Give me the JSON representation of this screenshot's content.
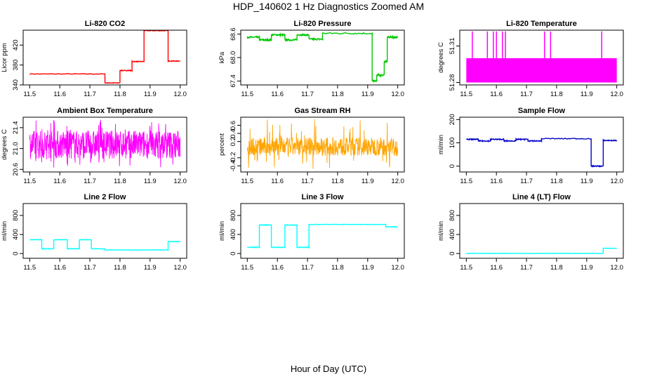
{
  "title": "HDP_140602  1 Hz Diagnostics Zoomed AM",
  "xlabel": "Hour of Day (UTC)",
  "chart_data": [
    {
      "type": "line",
      "title": "Li-820 CO2",
      "ylabel": "Licor ppm",
      "color": "#ff0000",
      "xlim": [
        11.5,
        12.0
      ],
      "ylim": [
        340,
        450
      ],
      "xticks": [
        "11.5",
        "11.6",
        "11.7",
        "11.8",
        "11.9",
        "12.0"
      ],
      "yticks": [
        "340",
        "380",
        "420"
      ],
      "ytick_values": [
        340,
        380,
        420
      ],
      "segments": [
        [
          11.5,
          11.75,
          362
        ],
        [
          11.75,
          11.8,
          344
        ],
        [
          11.8,
          11.84,
          369
        ],
        [
          11.84,
          11.88,
          387
        ],
        [
          11.88,
          11.96,
          449
        ],
        [
          11.96,
          12.0,
          388
        ]
      ],
      "noise": 0.6
    },
    {
      "type": "line",
      "title": "Li-820 Pressure",
      "ylabel": "kPa",
      "color": "#00c800",
      "xlim": [
        11.5,
        12.0
      ],
      "ylim": [
        67.3,
        68.7
      ],
      "xticks": [
        "11.5",
        "11.6",
        "11.7",
        "11.8",
        "11.9",
        "12.0"
      ],
      "yticks": [
        "67.4",
        "68.0",
        "68.6"
      ],
      "ytick_values": [
        67.4,
        68.0,
        68.6
      ],
      "segments": [
        [
          11.5,
          11.54,
          68.52
        ],
        [
          11.54,
          11.58,
          68.45
        ],
        [
          11.58,
          11.625,
          68.58
        ],
        [
          11.625,
          11.665,
          68.45
        ],
        [
          11.665,
          11.705,
          68.58
        ],
        [
          11.705,
          11.75,
          68.47
        ],
        [
          11.75,
          11.915,
          68.62
        ],
        [
          11.915,
          11.93,
          67.4
        ],
        [
          11.93,
          11.955,
          67.55
        ],
        [
          11.955,
          11.965,
          67.9
        ],
        [
          11.965,
          12.0,
          68.52
        ]
      ],
      "noise": 0.02
    },
    {
      "type": "line",
      "title": "Li-820 Temperature",
      "ylabel": "degrees C",
      "color": "#ff00ff",
      "xlim": [
        11.5,
        12.0
      ],
      "ylim": [
        51.278,
        51.323
      ],
      "xticks": [
        "11.5",
        "11.6",
        "11.7",
        "11.8",
        "11.9",
        "12.0"
      ],
      "yticks": [
        "51.28",
        "51.31"
      ],
      "ytick_values": [
        51.28,
        51.31
      ],
      "band": [
        51.28,
        51.3
      ],
      "spikes": [
        11.52,
        11.57,
        11.59,
        11.6,
        11.62,
        11.63,
        11.76,
        11.78,
        11.95
      ],
      "spike_top": 51.322
    },
    {
      "type": "line",
      "title": "Ambient Box Temperature",
      "ylabel": "degrees C",
      "color": "#ff00ff",
      "xlim": [
        11.5,
        12.0
      ],
      "ylim": [
        20.55,
        21.6
      ],
      "xticks": [
        "11.5",
        "11.6",
        "11.7",
        "11.8",
        "11.9",
        "12.0"
      ],
      "yticks": [
        "20.6",
        "21.0",
        "21.4"
      ],
      "ytick_values": [
        20.6,
        21.0,
        21.4
      ],
      "noise_band": [
        20.8,
        21.35
      ],
      "noise_extreme": [
        20.63,
        21.55
      ]
    },
    {
      "type": "line",
      "title": "Gas Stream RH",
      "ylabel": "percent",
      "color": "#ffa500",
      "xlim": [
        11.5,
        12.0
      ],
      "ylim": [
        -0.55,
        0.8
      ],
      "xticks": [
        "11.5",
        "11.6",
        "11.7",
        "11.8",
        "11.9",
        "12.0"
      ],
      "yticks": [
        "-0.4",
        "-0.2",
        "0.2",
        "0.4",
        "0.6"
      ],
      "ytick_values": [
        -0.4,
        -0.2,
        0.2,
        0.4,
        0.6
      ],
      "noise_band": [
        -0.15,
        0.3
      ],
      "noise_extreme": [
        -0.5,
        0.75
      ]
    },
    {
      "type": "line",
      "title": "Sample Flow",
      "ylabel": "ml/min",
      "color": "#0000c8",
      "xlim": [
        11.5,
        12.0
      ],
      "ylim": [
        -25,
        210
      ],
      "xticks": [
        "11.5",
        "11.6",
        "11.7",
        "11.8",
        "11.9",
        "12.0"
      ],
      "yticks": [
        "0",
        "100",
        "200"
      ],
      "ytick_values": [
        0,
        100,
        200
      ],
      "segments": [
        [
          11.5,
          11.54,
          115
        ],
        [
          11.54,
          11.58,
          108
        ],
        [
          11.58,
          11.625,
          115
        ],
        [
          11.625,
          11.665,
          108
        ],
        [
          11.665,
          11.705,
          115
        ],
        [
          11.705,
          11.75,
          108
        ],
        [
          11.75,
          11.915,
          118
        ],
        [
          11.915,
          11.955,
          0
        ],
        [
          11.955,
          12.0,
          110
        ]
      ],
      "noise": 2
    },
    {
      "type": "line",
      "title": "Line 2 Flow",
      "ylabel": "ml/min",
      "color": "#00ffff",
      "xlim": [
        11.5,
        12.0
      ],
      "ylim": [
        -100,
        1050
      ],
      "xticks": [
        "11.5",
        "11.6",
        "11.7",
        "11.8",
        "11.9",
        "12.0"
      ],
      "yticks": [
        "0",
        "400",
        "800"
      ],
      "ytick_values": [
        0,
        400,
        800
      ],
      "segments": [
        [
          11.5,
          11.54,
          290
        ],
        [
          11.54,
          11.58,
          100
        ],
        [
          11.58,
          11.625,
          290
        ],
        [
          11.625,
          11.665,
          100
        ],
        [
          11.665,
          11.705,
          290
        ],
        [
          11.705,
          11.75,
          100
        ],
        [
          11.75,
          11.96,
          75
        ],
        [
          11.96,
          12.0,
          250
        ]
      ],
      "noise": 4
    },
    {
      "type": "line",
      "title": "Line 3 Flow",
      "ylabel": "ml/min",
      "color": "#00ffff",
      "xlim": [
        11.5,
        12.0
      ],
      "ylim": [
        -100,
        1050
      ],
      "xticks": [
        "11.5",
        "11.6",
        "11.7",
        "11.8",
        "11.9",
        "12.0"
      ],
      "yticks": [
        "0",
        "400",
        "800"
      ],
      "ytick_values": [
        0,
        400,
        800
      ],
      "segments": [
        [
          11.5,
          11.54,
          130
        ],
        [
          11.54,
          11.58,
          600
        ],
        [
          11.58,
          11.625,
          130
        ],
        [
          11.625,
          11.665,
          600
        ],
        [
          11.665,
          11.705,
          130
        ],
        [
          11.705,
          11.96,
          610
        ],
        [
          11.96,
          12.0,
          560
        ]
      ],
      "noise": 5
    },
    {
      "type": "line",
      "title": "Line 4 (LT) Flow",
      "ylabel": "ml/min",
      "color": "#00ffff",
      "xlim": [
        11.5,
        12.0
      ],
      "ylim": [
        -100,
        1050
      ],
      "xticks": [
        "11.5",
        "11.6",
        "11.7",
        "11.8",
        "11.9",
        "12.0"
      ],
      "yticks": [
        "0",
        "400",
        "800"
      ],
      "ytick_values": [
        0,
        400,
        800
      ],
      "segments": [
        [
          11.5,
          11.955,
          2
        ],
        [
          11.955,
          12.0,
          110
        ]
      ],
      "noise": 2
    }
  ]
}
